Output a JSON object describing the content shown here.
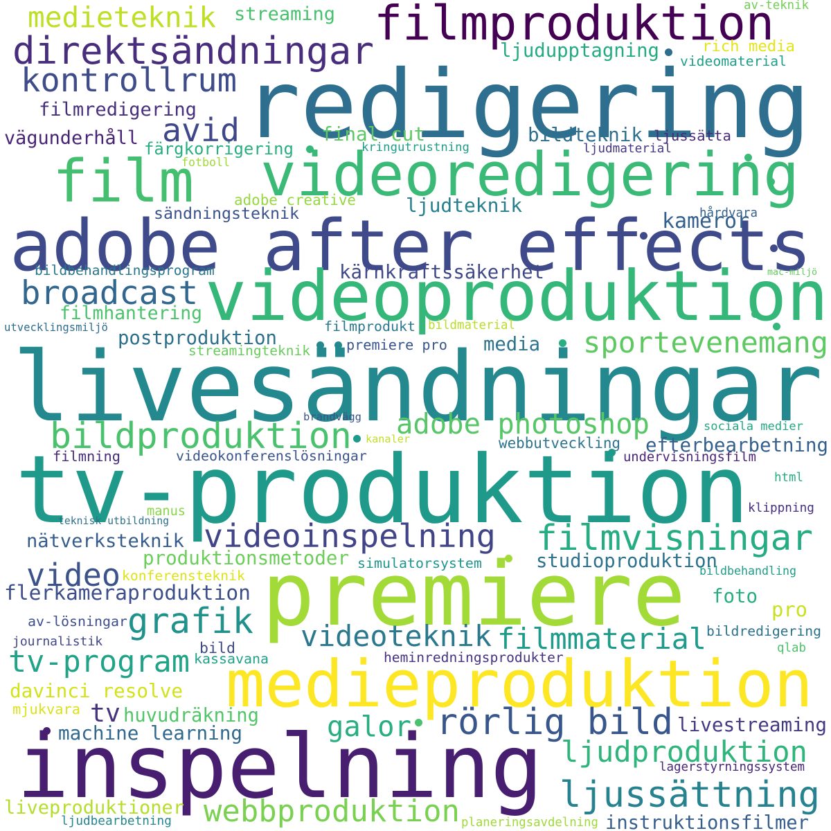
{
  "words": [
    {
      "text": "redigering",
      "color": "#2e6e8e"
    },
    {
      "text": "livesändningar",
      "color": "#23898e"
    },
    {
      "text": "tv-produktion",
      "color": "#1f9a8a"
    },
    {
      "text": "adobe after effects",
      "color": "#3e4a89"
    },
    {
      "text": "inspelning",
      "color": "#481f70"
    },
    {
      "text": "premiere",
      "color": "#a2da37"
    },
    {
      "text": "medieproduktion",
      "color": "#fde725"
    },
    {
      "text": "videoproduktion",
      "color": "#35b779"
    },
    {
      "text": "videoredigering",
      "color": "#3aba76"
    },
    {
      "text": "filmproduktion",
      "color": "#440154"
    },
    {
      "text": "film",
      "color": "#44bf70"
    },
    {
      "text": "direktsändningar",
      "color": "#472d7b"
    },
    {
      "text": "bildproduktion",
      "color": "#4ac16d"
    },
    {
      "text": "rörlig bild",
      "color": "#39568c"
    },
    {
      "text": "ljudproduktion",
      "color": "#2fb47c"
    },
    {
      "text": "ljussättning",
      "color": "#26828e"
    },
    {
      "text": "webbproduktion",
      "color": "#7ad151"
    },
    {
      "text": "filmvisningar",
      "color": "#25ac82"
    },
    {
      "text": "videoinspelning",
      "color": "#414487"
    },
    {
      "text": "sportevenemang",
      "color": "#5ec962"
    },
    {
      "text": "adobe photoshop",
      "color": "#56c667"
    },
    {
      "text": "broadcast",
      "color": "#31668e"
    },
    {
      "text": "kontrollrum",
      "color": "#3e4c8a"
    },
    {
      "text": "medieteknik",
      "color": "#bddf26"
    },
    {
      "text": "grafik",
      "color": "#21918c"
    },
    {
      "text": "tv-program",
      "color": "#20a386"
    },
    {
      "text": "videoteknik",
      "color": "#2a788e"
    },
    {
      "text": "filmmaterial",
      "color": "#1e9b8a"
    },
    {
      "text": "video",
      "color": "#3b528b"
    },
    {
      "text": "galor",
      "color": "#28ae80"
    },
    {
      "text": "avid",
      "color": "#3f4788"
    },
    {
      "text": "tv",
      "color": "#46337e"
    },
    {
      "text": "efterbearbetning",
      "color": "#355f8d"
    },
    {
      "text": "livestreaming",
      "color": "#443a83"
    },
    {
      "text": "davinci resolve",
      "color": "#d2e21b"
    },
    {
      "text": "machine learning",
      "color": "#31688e"
    },
    {
      "text": "huvudräkning",
      "color": "#52c569"
    },
    {
      "text": "liveproduktioner",
      "color": "#b5de2b"
    },
    {
      "text": "instruktionsfilmer",
      "color": "#365d8d"
    },
    {
      "text": "flerkameraproduktion",
      "color": "#3d4d8a"
    },
    {
      "text": "nätverksteknik",
      "color": "#365c8d"
    },
    {
      "text": "produktionsmetoder",
      "color": "#6ccd5a"
    },
    {
      "text": "studioproduktion",
      "color": "#2c728e"
    },
    {
      "text": "postproduktion",
      "color": "#2d708e"
    },
    {
      "text": "filmhantering",
      "color": "#4cc26c"
    },
    {
      "text": "kärnkraftssäkerhet",
      "color": "#3f4889"
    },
    {
      "text": "ljudteknik",
      "color": "#277f8e"
    },
    {
      "text": "sändningsteknik",
      "color": "#3b528b"
    },
    {
      "text": "kameror",
      "color": "#34608d"
    },
    {
      "text": "bildteknik",
      "color": "#2e6f8e"
    },
    {
      "text": "final cut",
      "color": "#5dc863"
    },
    {
      "text": "filmredigering",
      "color": "#472f7d"
    },
    {
      "text": "vägunderhåll",
      "color": "#482475"
    },
    {
      "text": "färgkorrigering",
      "color": "#29af7f"
    },
    {
      "text": "ljudupptagning",
      "color": "#25ab82"
    },
    {
      "text": "streaming",
      "color": "#48c16e"
    },
    {
      "text": "rich media",
      "color": "#e5e419"
    },
    {
      "text": "videomaterial",
      "color": "#1fa088"
    },
    {
      "text": "ljussätta",
      "color": "#472a7a"
    },
    {
      "text": "ljudmaterial",
      "color": "#453781"
    },
    {
      "text": "kringutrustning",
      "color": "#1f9e89"
    },
    {
      "text": "fotboll",
      "color": "#a0da39"
    },
    {
      "text": "adobe creative",
      "color": "#95d840"
    },
    {
      "text": "hårdvara",
      "color": "#34618d"
    },
    {
      "text": "bildbehandlingsprogram",
      "color": "#2a768e"
    },
    {
      "text": "mac-miljö",
      "color": "#63cb5f"
    },
    {
      "text": "utvecklingsmiljö",
      "color": "#2e6d8e"
    },
    {
      "text": "filmprodukt",
      "color": "#2a778e"
    },
    {
      "text": "bildmaterial",
      "color": "#bade28"
    },
    {
      "text": "streamingteknik",
      "color": "#67cc5c"
    },
    {
      "text": "premiere pro",
      "color": "#3a548c"
    },
    {
      "text": "media",
      "color": "#2c738e"
    },
    {
      "text": "brandvägg",
      "color": "#3b528b"
    },
    {
      "text": "sociala medier",
      "color": "#23a983"
    },
    {
      "text": "kanaler",
      "color": "#c0df25"
    },
    {
      "text": "webbutveckling",
      "color": "#2c738e"
    },
    {
      "text": "filmning",
      "color": "#472c7a"
    },
    {
      "text": "videokonferenslösningar",
      "color": "#3a538b"
    },
    {
      "text": "undervisningsfilm",
      "color": "#482576"
    },
    {
      "text": "html",
      "color": "#26ad81"
    },
    {
      "text": "manus",
      "color": "#8bd646"
    },
    {
      "text": "teknisk utbildning",
      "color": "#2c718e"
    },
    {
      "text": "klippning",
      "color": "#46307e"
    },
    {
      "text": "simulatorsystem",
      "color": "#1f968b"
    },
    {
      "text": "konferensteknik",
      "color": "#dde318"
    },
    {
      "text": "bildbehandling",
      "color": "#1e9d89"
    },
    {
      "text": "foto",
      "color": "#26ad81"
    },
    {
      "text": "pro",
      "color": "#c8e020"
    },
    {
      "text": "av-lösningar",
      "color": "#3d4e8a"
    },
    {
      "text": "journalistik",
      "color": "#3f4788"
    },
    {
      "text": "bild",
      "color": "#3e4a89"
    },
    {
      "text": "kassavana",
      "color": "#1fa187"
    },
    {
      "text": "heminredningsprodukter",
      "color": "#46337f"
    },
    {
      "text": "bildredigering",
      "color": "#2c728e"
    },
    {
      "text": "qlab",
      "color": "#50c46a"
    },
    {
      "text": "mjukvara",
      "color": "#dae319"
    },
    {
      "text": "lagerstyrningssystem",
      "color": "#482677"
    },
    {
      "text": "ljudbearbetning",
      "color": "#24868e"
    },
    {
      "text": "planeringsavdelning",
      "color": "#9fda3a"
    },
    {
      "text": "av-teknik",
      "color": "#70cf57"
    }
  ],
  "dots": [
    {
      "color": "#2e6e8e"
    },
    {
      "color": "#3aba76"
    },
    {
      "color": "#3aba76"
    },
    {
      "color": "#3e4a89"
    },
    {
      "color": "#3e4a89"
    },
    {
      "color": "#35b779"
    },
    {
      "color": "#35b779"
    },
    {
      "color": "#23898e"
    },
    {
      "color": "#23898e"
    },
    {
      "color": "#1f9a8a"
    },
    {
      "color": "#a2da37"
    },
    {
      "color": "#4ac16d"
    },
    {
      "color": "#1f9a8a"
    },
    {
      "color": "#28ae80"
    },
    {
      "color": "#481f70"
    },
    {
      "color": "#35b779"
    }
  ]
}
